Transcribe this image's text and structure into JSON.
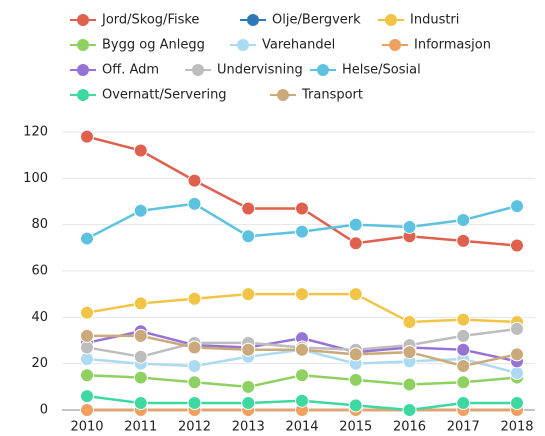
{
  "chart_data": {
    "type": "line",
    "categories": [
      "2010",
      "2011",
      "2012",
      "2013",
      "2014",
      "2015",
      "2016",
      "2017",
      "2018"
    ],
    "series": [
      {
        "name": "Jord/Skog/Fiske",
        "color": "#e0604e",
        "values": [
          118,
          112,
          99,
          87,
          87,
          72,
          75,
          73,
          71
        ]
      },
      {
        "name": "Olje/Bergverk",
        "color": "#2e78b8",
        "values": [
          0,
          0,
          0,
          0,
          0,
          0,
          0,
          0,
          0
        ]
      },
      {
        "name": "Industri",
        "color": "#f2c446",
        "values": [
          42,
          46,
          48,
          50,
          50,
          50,
          38,
          39,
          38
        ]
      },
      {
        "name": "Bygg og Anlegg",
        "color": "#8fd160",
        "values": [
          15,
          14,
          12,
          10,
          15,
          13,
          11,
          12,
          14
        ]
      },
      {
        "name": "Varehandel",
        "color": "#acdaf2",
        "values": [
          22,
          20,
          19,
          23,
          26,
          20,
          21,
          22,
          16
        ]
      },
      {
        "name": "Informasjon",
        "color": "#f0a060",
        "values": [
          0,
          0,
          0,
          0,
          0,
          0,
          0,
          0,
          0
        ]
      },
      {
        "name": "Off. Adm",
        "color": "#9674d6",
        "values": [
          29,
          34,
          28,
          27,
          31,
          25,
          27,
          26,
          21
        ]
      },
      {
        "name": "Undervisning",
        "color": "#bdbdbd",
        "values": [
          27,
          23,
          29,
          29,
          27,
          26,
          28,
          32,
          35
        ]
      },
      {
        "name": "Helse/Sosial",
        "color": "#5cc2e0",
        "values": [
          74,
          86,
          89,
          75,
          77,
          80,
          79,
          82,
          88
        ]
      },
      {
        "name": "Overnatt/Servering",
        "color": "#3ed9a0",
        "values": [
          6,
          3,
          3,
          3,
          4,
          2,
          0,
          3,
          3
        ]
      },
      {
        "name": "Transport",
        "color": "#cba97a",
        "values": [
          32,
          32,
          27,
          26,
          26,
          24,
          25,
          19,
          24
        ]
      }
    ],
    "ylim": [
      0,
      120
    ],
    "yticks": [
      0,
      20,
      40,
      60,
      80,
      100,
      120
    ],
    "grid": true
  }
}
